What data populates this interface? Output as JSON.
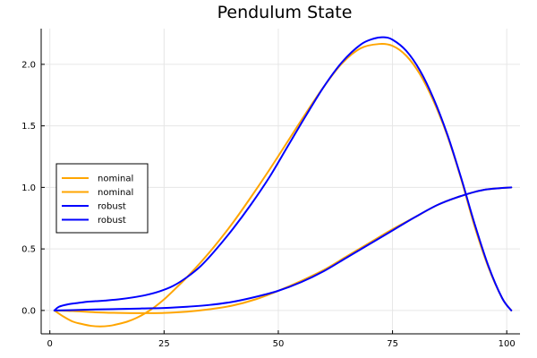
{
  "chart_data": {
    "type": "line",
    "title": "Pendulum State",
    "xlabel": "",
    "ylabel": "",
    "xlim": [
      -1.9,
      102.9
    ],
    "ylim": [
      -0.19,
      2.29
    ],
    "x_ticks": [
      0,
      25,
      50,
      75,
      100
    ],
    "x_tick_labels": [
      "0",
      "25",
      "50",
      "75",
      "100"
    ],
    "y_ticks": [
      0.0,
      0.5,
      1.0,
      1.5,
      2.0
    ],
    "y_tick_labels": [
      "0.0",
      "0.5",
      "1.0",
      "1.5",
      "2.0"
    ],
    "grid": true,
    "legend_position": "middle-left",
    "series": [
      {
        "name": "nominal",
        "color": "#FFA500",
        "x": [
          1,
          3,
          5,
          7,
          9,
          11,
          13,
          15,
          17,
          19,
          21,
          23,
          25,
          27,
          30,
          33,
          36,
          40,
          44,
          48,
          52,
          56,
          60,
          64,
          68,
          72,
          75,
          78,
          81,
          84,
          87,
          90,
          93,
          96,
          99,
          101
        ],
        "values": [
          0.0,
          -0.05,
          -0.09,
          -0.11,
          -0.125,
          -0.13,
          -0.125,
          -0.11,
          -0.09,
          -0.06,
          -0.02,
          0.03,
          0.09,
          0.16,
          0.27,
          0.39,
          0.52,
          0.71,
          0.92,
          1.14,
          1.37,
          1.6,
          1.82,
          2.01,
          2.13,
          2.165,
          2.15,
          2.07,
          1.92,
          1.7,
          1.42,
          1.07,
          0.68,
          0.35,
          0.1,
          0.0
        ]
      },
      {
        "name": "nominal",
        "color": "#FFA500",
        "x": [
          1,
          5,
          10,
          15,
          20,
          25,
          30,
          35,
          40,
          45,
          50,
          55,
          60,
          65,
          70,
          75,
          80,
          85,
          90,
          95,
          101
        ],
        "values": [
          0.0,
          -0.005,
          -0.015,
          -0.02,
          -0.022,
          -0.02,
          -0.01,
          0.01,
          0.04,
          0.09,
          0.16,
          0.24,
          0.33,
          0.44,
          0.55,
          0.66,
          0.76,
          0.86,
          0.93,
          0.98,
          1.0
        ]
      },
      {
        "name": "robust",
        "color": "#0000FF",
        "x": [
          1,
          2,
          4,
          6,
          8,
          10,
          12,
          15,
          18,
          21,
          24,
          27,
          30,
          33,
          36,
          40,
          44,
          48,
          52,
          56,
          60,
          64,
          68,
          71,
          73,
          75,
          78,
          81,
          84,
          87,
          90,
          93,
          96,
          99,
          101
        ],
        "values": [
          0.0,
          0.03,
          0.05,
          0.06,
          0.07,
          0.075,
          0.08,
          0.09,
          0.105,
          0.125,
          0.155,
          0.2,
          0.27,
          0.36,
          0.48,
          0.66,
          0.86,
          1.08,
          1.33,
          1.58,
          1.82,
          2.02,
          2.16,
          2.21,
          2.22,
          2.2,
          2.11,
          1.95,
          1.72,
          1.43,
          1.08,
          0.7,
          0.36,
          0.1,
          0.0
        ]
      },
      {
        "name": "robust",
        "color": "#0000FF",
        "x": [
          1,
          5,
          10,
          15,
          20,
          25,
          30,
          35,
          40,
          45,
          50,
          55,
          60,
          65,
          70,
          75,
          80,
          85,
          90,
          95,
          101
        ],
        "values": [
          0.0,
          0.003,
          0.008,
          0.012,
          0.016,
          0.02,
          0.03,
          0.045,
          0.07,
          0.11,
          0.16,
          0.23,
          0.32,
          0.43,
          0.54,
          0.65,
          0.76,
          0.86,
          0.93,
          0.98,
          1.0
        ]
      }
    ]
  }
}
